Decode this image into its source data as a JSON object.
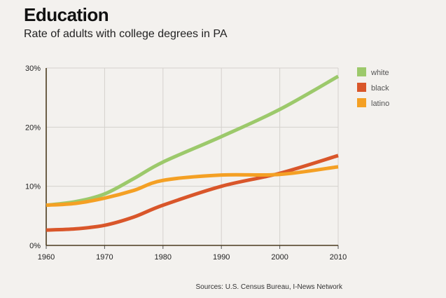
{
  "chart_data": {
    "type": "line",
    "title": "Education",
    "subtitle": "Rate of adults with college degrees in PA",
    "x_ticks": [
      "1960",
      "1970",
      "1980",
      "1990",
      "2000",
      "2010"
    ],
    "y_ticks": [
      "0%",
      "10%",
      "20%",
      "30%"
    ],
    "xlim": [
      1960,
      2010
    ],
    "ylim": [
      0,
      30
    ],
    "series": [
      {
        "name": "white",
        "color": "#9cc96b",
        "x": [
          1960,
          1965,
          1970,
          1975,
          1980,
          1990,
          2000,
          2010
        ],
        "y": [
          6.8,
          7.4,
          8.7,
          11.3,
          14.1,
          18.4,
          23.0,
          28.6
        ]
      },
      {
        "name": "black",
        "color": "#d9562a",
        "x": [
          1960,
          1965,
          1970,
          1975,
          1980,
          1990,
          2000,
          2010
        ],
        "y": [
          2.6,
          2.8,
          3.4,
          4.8,
          6.8,
          10.0,
          12.2,
          15.2
        ]
      },
      {
        "name": "latino",
        "color": "#f4a024",
        "x": [
          1960,
          1965,
          1970,
          1975,
          1980,
          1990,
          2000,
          2010
        ],
        "y": [
          6.8,
          7.1,
          8.0,
          9.3,
          11.0,
          11.9,
          12.0,
          13.3
        ]
      }
    ],
    "legend_position": "top-right",
    "source": "Sources: U.S. Census Bureau, I-News Network"
  }
}
